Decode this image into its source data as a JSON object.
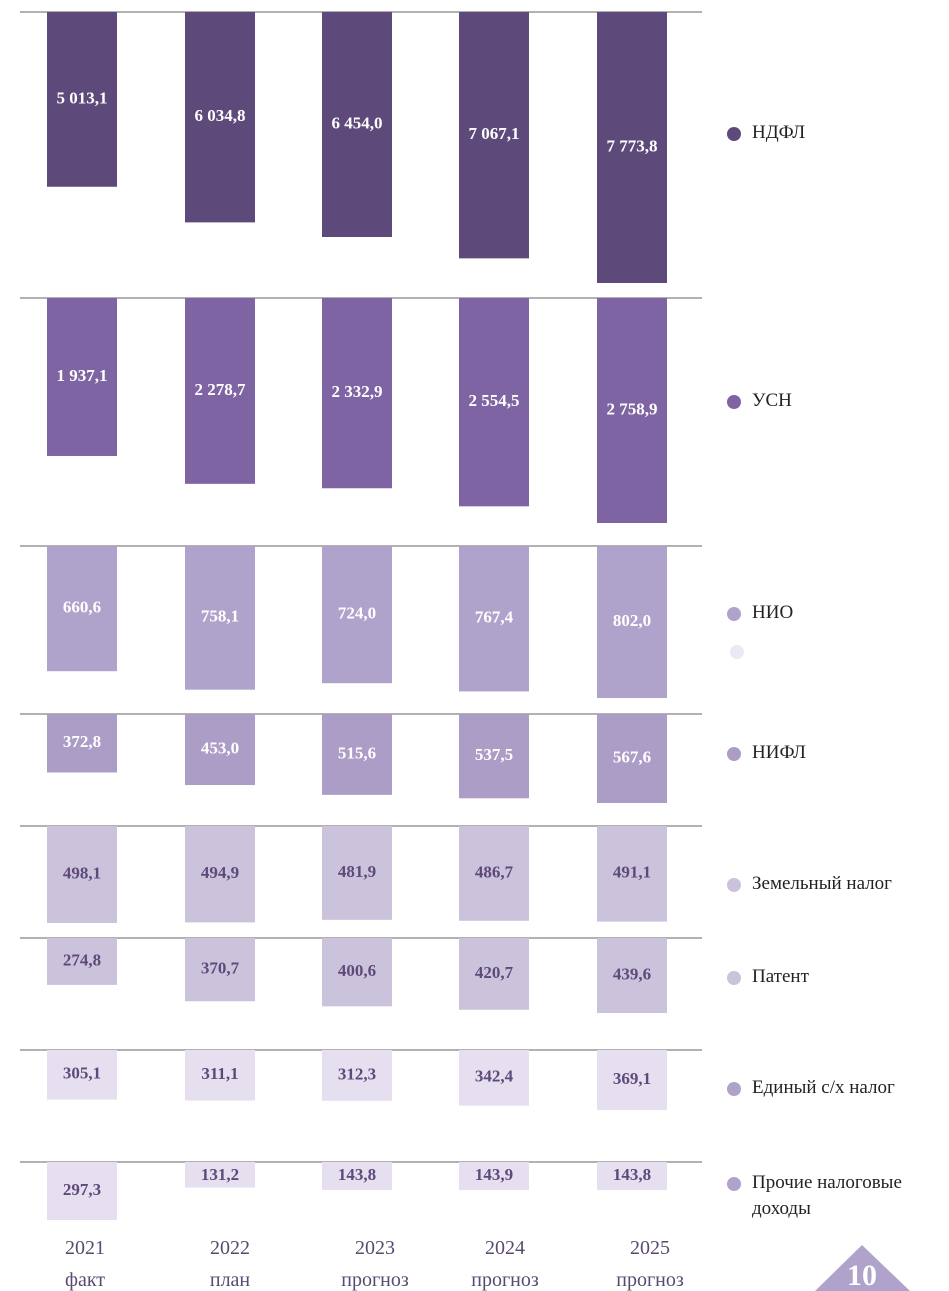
{
  "chart_data": {
    "type": "bar",
    "categories": [
      "2021\nфакт",
      "2022\nплан",
      "2023\nпрогноз",
      "2024\nпрогноз",
      "2025\nпрогноз"
    ],
    "series": [
      {
        "name": "НДФЛ",
        "color": "#5e4a7a",
        "values": [
          5013.1,
          6034.8,
          6454.0,
          7067.1,
          7773.8
        ],
        "value_labels": [
          "5 013,1",
          "6 034,8",
          "6 454,0",
          "7 067,1",
          "7 773,8"
        ]
      },
      {
        "name": "УСН",
        "color": "#7f64a3",
        "values": [
          1937.1,
          2278.7,
          2332.9,
          2554.5,
          2758.9
        ],
        "value_labels": [
          "1 937,1",
          "2 278,7",
          "2 332,9",
          "2 554,5",
          "2 758,9"
        ]
      },
      {
        "name": "НИО",
        "color": "#b0a3cb",
        "values": [
          660.6,
          758.1,
          724.0,
          767.4,
          802.0
        ],
        "value_labels": [
          "660,6",
          "758,1",
          "724,0",
          "767,4",
          "802,0"
        ]
      },
      {
        "name": "НИФЛ",
        "color": "#ab9dc6",
        "values": [
          372.8,
          453.0,
          515.6,
          537.5,
          567.6
        ],
        "value_labels": [
          "372,8",
          "453,0",
          "515,6",
          "537,5",
          "567,6"
        ]
      },
      {
        "name": "Земельный налог",
        "color": "#cbc2dc",
        "values": [
          498.1,
          494.9,
          481.9,
          486.7,
          491.1
        ],
        "value_labels": [
          "498,1",
          "494,9",
          "481,9",
          "486,7",
          "491,1"
        ]
      },
      {
        "name": "Патент",
        "color": "#cbc2dc",
        "values": [
          274.8,
          370.7,
          400.6,
          420.7,
          439.6
        ],
        "value_labels": [
          "274,8",
          "370,7",
          "400,6",
          "420,7",
          "439,6"
        ]
      },
      {
        "name": "Единый с/х налог",
        "color": "#e5dff0",
        "values": [
          305.1,
          311.1,
          312.3,
          342.4,
          369.1
        ],
        "value_labels": [
          "305,1",
          "311,1",
          "312,3",
          "342,4",
          "369,1"
        ]
      },
      {
        "name": "Прочие налоговые\nдоходы",
        "color": "#e5dff0",
        "values": [
          297.3,
          131.2,
          143.8,
          143.9,
          143.8
        ],
        "value_labels": [
          "297,3",
          "131,2",
          "143,8",
          "143,9",
          "143,8"
        ]
      }
    ],
    "page_number": "10"
  }
}
